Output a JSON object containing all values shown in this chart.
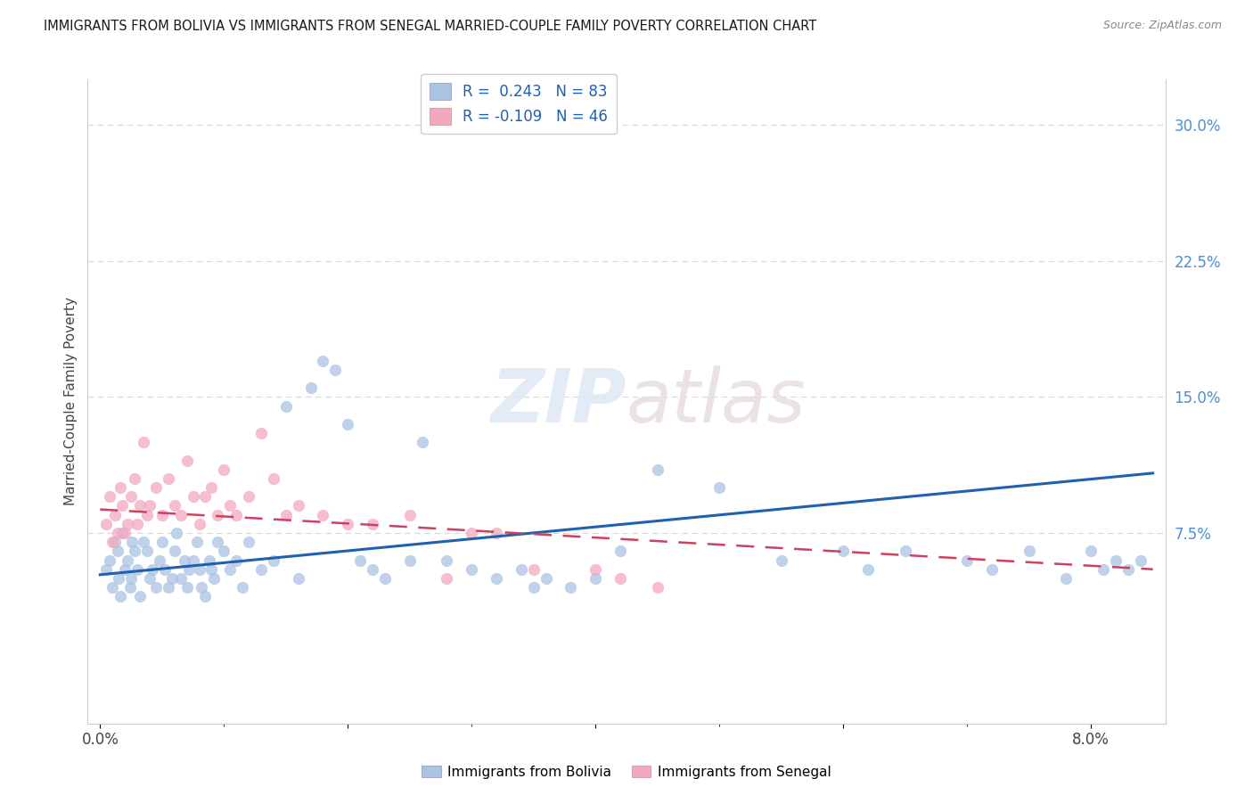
{
  "title": "IMMIGRANTS FROM BOLIVIA VS IMMIGRANTS FROM SENEGAL MARRIED-COUPLE FAMILY POVERTY CORRELATION CHART",
  "source": "Source: ZipAtlas.com",
  "ylabel": "Married-Couple Family Poverty",
  "bolivia_color": "#aac4e2",
  "senegal_color": "#f4a8c0",
  "bolivia_line_color": "#2060b0",
  "senegal_line_color": "#d04060",
  "legend_bolivia_R": "0.243",
  "legend_bolivia_N": "83",
  "legend_senegal_R": "-0.109",
  "legend_senegal_N": "46",
  "watermark_text": "ZIPatlas",
  "bolivia_x": [
    0.05,
    0.08,
    0.1,
    0.12,
    0.14,
    0.15,
    0.16,
    0.18,
    0.2,
    0.22,
    0.24,
    0.25,
    0.26,
    0.28,
    0.3,
    0.32,
    0.35,
    0.38,
    0.4,
    0.42,
    0.45,
    0.48,
    0.5,
    0.52,
    0.55,
    0.58,
    0.6,
    0.62,
    0.65,
    0.68,
    0.7,
    0.72,
    0.75,
    0.78,
    0.8,
    0.82,
    0.85,
    0.88,
    0.9,
    0.92,
    0.95,
    1.0,
    1.05,
    1.1,
    1.15,
    1.2,
    1.3,
    1.4,
    1.5,
    1.6,
    1.7,
    1.8,
    1.9,
    2.0,
    2.1,
    2.2,
    2.3,
    2.5,
    2.6,
    2.8,
    3.0,
    3.2,
    3.4,
    3.5,
    3.6,
    3.8,
    4.0,
    4.2,
    4.5,
    5.0,
    5.5,
    6.0,
    6.2,
    6.5,
    7.0,
    7.2,
    7.5,
    7.8,
    8.0,
    8.1,
    8.2,
    8.3,
    8.4
  ],
  "bolivia_y": [
    5.5,
    6.0,
    4.5,
    7.0,
    6.5,
    5.0,
    4.0,
    7.5,
    5.5,
    6.0,
    4.5,
    5.0,
    7.0,
    6.5,
    5.5,
    4.0,
    7.0,
    6.5,
    5.0,
    5.5,
    4.5,
    6.0,
    7.0,
    5.5,
    4.5,
    5.0,
    6.5,
    7.5,
    5.0,
    6.0,
    4.5,
    5.5,
    6.0,
    7.0,
    5.5,
    4.5,
    4.0,
    6.0,
    5.5,
    5.0,
    7.0,
    6.5,
    5.5,
    6.0,
    4.5,
    7.0,
    5.5,
    6.0,
    14.5,
    5.0,
    15.5,
    17.0,
    16.5,
    13.5,
    6.0,
    5.5,
    5.0,
    6.0,
    12.5,
    6.0,
    5.5,
    5.0,
    5.5,
    4.5,
    5.0,
    4.5,
    5.0,
    6.5,
    11.0,
    10.0,
    6.0,
    6.5,
    5.5,
    6.5,
    6.0,
    5.5,
    6.5,
    5.0,
    6.5,
    5.5,
    6.0,
    5.5,
    6.0
  ],
  "senegal_x": [
    0.05,
    0.08,
    0.1,
    0.12,
    0.14,
    0.16,
    0.18,
    0.2,
    0.22,
    0.25,
    0.28,
    0.3,
    0.32,
    0.35,
    0.38,
    0.4,
    0.45,
    0.5,
    0.55,
    0.6,
    0.65,
    0.7,
    0.75,
    0.8,
    0.85,
    0.9,
    0.95,
    1.0,
    1.05,
    1.1,
    1.2,
    1.3,
    1.4,
    1.5,
    1.6,
    1.8,
    2.0,
    2.2,
    2.5,
    2.8,
    3.0,
    3.2,
    3.5,
    4.0,
    4.2,
    4.5
  ],
  "senegal_y": [
    8.0,
    9.5,
    7.0,
    8.5,
    7.5,
    10.0,
    9.0,
    7.5,
    8.0,
    9.5,
    10.5,
    8.0,
    9.0,
    12.5,
    8.5,
    9.0,
    10.0,
    8.5,
    10.5,
    9.0,
    8.5,
    11.5,
    9.5,
    8.0,
    9.5,
    10.0,
    8.5,
    11.0,
    9.0,
    8.5,
    9.5,
    13.0,
    10.5,
    8.5,
    9.0,
    8.5,
    8.0,
    8.0,
    8.5,
    5.0,
    7.5,
    7.5,
    5.5,
    5.5,
    5.0,
    4.5
  ],
  "xlim": [
    -0.1,
    8.6
  ],
  "ylim": [
    -3.0,
    32.5
  ],
  "yticks": [
    7.5,
    15.0,
    22.5,
    30.0
  ],
  "ytick_labels": [
    "7.5%",
    "15.0%",
    "22.5%",
    "30.0%"
  ],
  "xtick_positions": [
    0,
    2,
    4,
    6,
    8
  ],
  "xtick_labels": [
    "0.0%",
    "",
    "",
    "",
    "8.0%"
  ],
  "bolivia_trend": [
    5.2,
    10.8
  ],
  "senegal_trend": [
    8.8,
    5.5
  ],
  "background_color": "#ffffff",
  "grid_color": "#d8d8d8",
  "scatter_size": 80,
  "scatter_alpha": 0.75
}
